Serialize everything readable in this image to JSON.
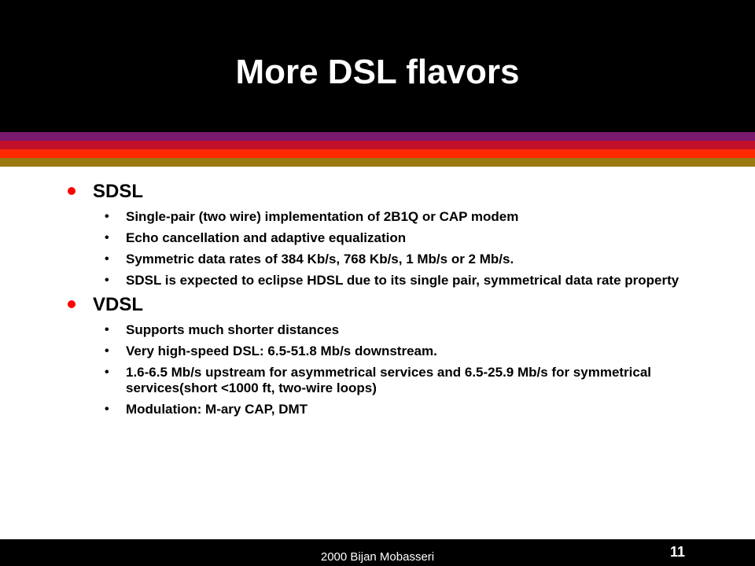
{
  "slide": {
    "title": "More DSL flavors",
    "stripe_colors": [
      "#7a1a6e",
      "#c0102a",
      "#ff2a00",
      "#9a7a10"
    ],
    "bullet_color": "#ff0000",
    "sections": [
      {
        "heading": "SDSL",
        "points": [
          "Single-pair (two wire) implementation of 2B1Q or CAP modem",
          "Echo cancellation and adaptive equalization",
          "Symmetric data rates of 384 Kb/s, 768 Kb/s, 1 Mb/s or 2 Mb/s.",
          "SDSL is expected to eclipse HDSL due to its single pair, symmetrical data rate property"
        ]
      },
      {
        "heading": "VDSL",
        "points": [
          "Supports much shorter distances",
          "Very high-speed DSL: 6.5-51.8 Mb/s downstream.",
          "1.6-6.5 Mb/s upstream for asymmetrical services and 6.5-25.9 Mb/s for symmetrical services(short <1000 ft, two-wire loops)",
          "Modulation: M-ary CAP, DMT"
        ]
      }
    ]
  },
  "footer": {
    "text": "2000 Bijan Mobasseri",
    "page_number": "11"
  }
}
